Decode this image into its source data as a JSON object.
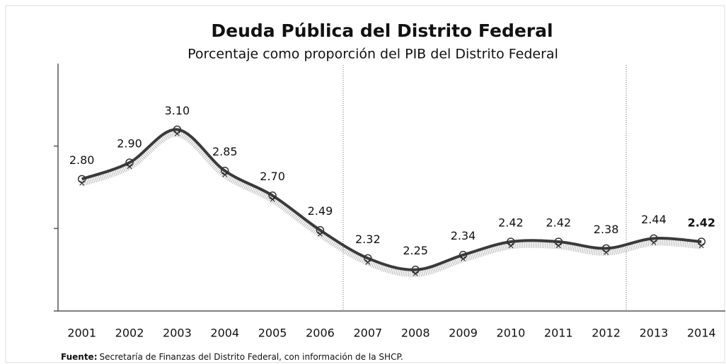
{
  "chart_data": {
    "type": "line",
    "title": "Deuda Pública del Distrito Federal",
    "subtitle": "Porcentaje como proporción del PIB del Distrito Federal",
    "categories": [
      "2001",
      "2002",
      "2003",
      "2004",
      "2005",
      "2006",
      "2007",
      "2008",
      "2009",
      "2010",
      "2011",
      "2012",
      "2013",
      "2014"
    ],
    "values": [
      2.8,
      2.9,
      3.1,
      2.85,
      2.7,
      2.49,
      2.32,
      2.25,
      2.34,
      2.42,
      2.42,
      2.38,
      2.44,
      2.42
    ],
    "value_labels": [
      "2.80",
      "2.90",
      "3.10",
      "2.85",
      "2.70",
      "2.49",
      "2.32",
      "2.25",
      "2.34",
      "2.42",
      "2.42",
      "2.38",
      "2.44",
      "2.42"
    ],
    "color": "#3a3a3a",
    "ylim": [
      2.0,
      3.5
    ],
    "yticks": [
      2.0,
      2.5,
      3.0
    ],
    "grid": false,
    "source_label": "Fuente:",
    "source": "Secretaría de Finanzas del Distrito Federal, con información de la SHCP."
  }
}
